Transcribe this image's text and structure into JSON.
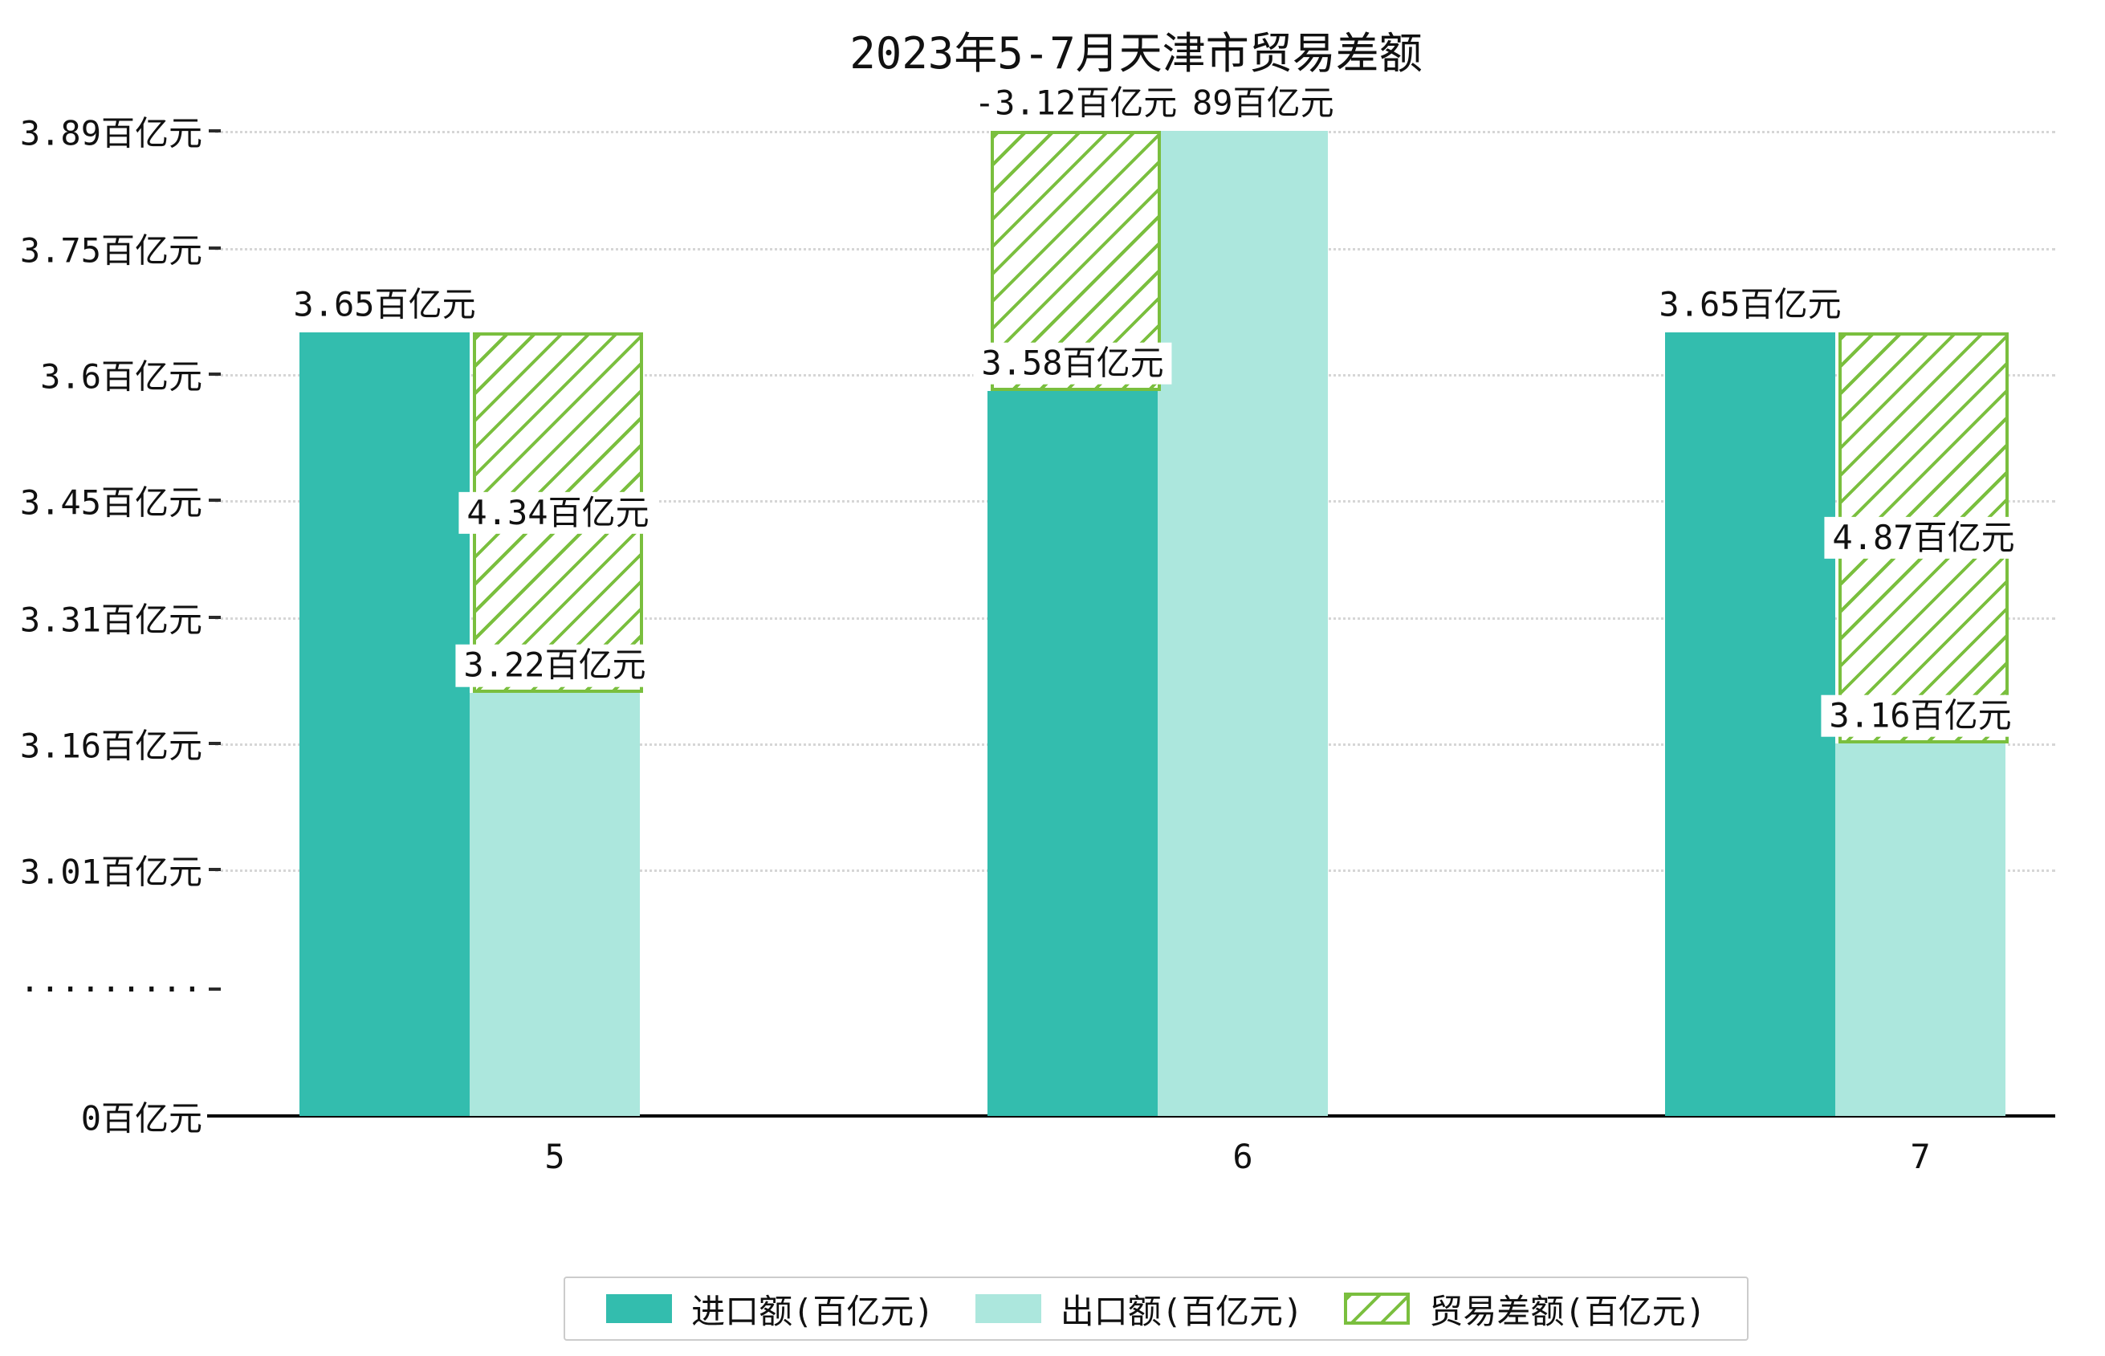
{
  "title": "2023年5-7月天津市贸易差额",
  "chart_data": {
    "type": "bar",
    "title": "2023年5-7月天津市贸易差额",
    "categories": [
      "5",
      "6",
      "7"
    ],
    "series": [
      {
        "name": "进口额(百亿元)",
        "values": [
          3.65,
          3.58,
          3.65
        ],
        "labels": [
          "3.65百亿元",
          "3.58百亿元",
          "3.65百亿元"
        ],
        "color": "#33bdae",
        "style": "solid"
      },
      {
        "name": "出口额(百亿元)",
        "values": [
          3.22,
          3.89,
          3.16
        ],
        "labels": [
          "3.22百亿元",
          "3.89百亿元",
          "3.16百亿元"
        ],
        "color": "#ace7dd",
        "style": "solid"
      },
      {
        "name": "贸易差额(百亿元)",
        "values": [
          4.34,
          -3.12,
          4.87
        ],
        "labels": [
          "4.34百亿元",
          "-3.12百亿元",
          "4.87百亿元"
        ],
        "color": "#7abf3e",
        "style": "hatch"
      }
    ],
    "y_ticks": [
      {
        "label": "3.89百亿元",
        "value": 3.89
      },
      {
        "label": "3.75百亿元",
        "value": 3.75
      },
      {
        "label": "3.6百亿元",
        "value": 3.6
      },
      {
        "label": "3.45百亿元",
        "value": 3.45
      },
      {
        "label": "3.31百亿元",
        "value": 3.31
      },
      {
        "label": "3.16百亿元",
        "value": 3.16
      },
      {
        "label": "3.01百亿元",
        "value": 3.01
      },
      {
        "label": "·········",
        "value": null
      },
      {
        "label": "0百亿元",
        "value": 0
      }
    ],
    "axis_break": true,
    "ylim_visible": [
      3.01,
      3.89
    ],
    "grid": "dotted-horizontal",
    "legend_position": "bottom"
  }
}
